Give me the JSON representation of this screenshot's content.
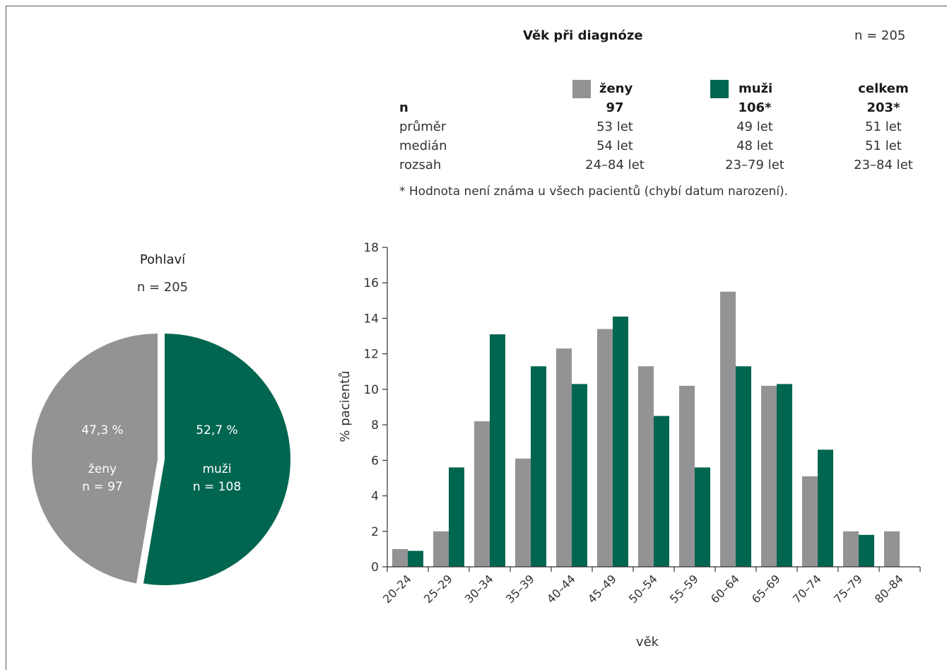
{
  "colors": {
    "zeny": "#939396",
    "muzi": "#006650",
    "axis": "#333333"
  },
  "age_table": {
    "title": "Věk při diagnóze",
    "n_total": "n = 205",
    "headers": [
      "ženy",
      "muži",
      "celkem"
    ],
    "rows": [
      {
        "label": "n",
        "values": [
          "97",
          "106*",
          "203*"
        ]
      },
      {
        "label": "průměr",
        "values": [
          "53 let",
          "49 let",
          "51 let"
        ]
      },
      {
        "label": "medián",
        "values": [
          "54 let",
          "48 let",
          "51 let"
        ]
      },
      {
        "label": "rozsah",
        "values": [
          "24–84 let",
          "23–79 let",
          "23–84 let"
        ]
      }
    ],
    "footnote": "* Hodnota není známa u všech pacientů (chybí datum narození)."
  },
  "pie": {
    "title": "Pohlaví",
    "n_total": "n = 205",
    "slices": [
      {
        "name": "ženy",
        "percent_label": "47,3 %",
        "n_label": "n = 97",
        "value": 47.3
      },
      {
        "name": "muži",
        "percent_label": "52,7 %",
        "n_label": "n = 108",
        "value": 52.7
      }
    ]
  },
  "chart_data": [
    {
      "type": "pie",
      "title": "Pohlaví",
      "categories": [
        "ženy",
        "muži"
      ],
      "values": [
        47.3,
        52.7
      ]
    },
    {
      "type": "bar",
      "xlabel": "věk",
      "ylabel": "% pacientů",
      "ylim": [
        0,
        18
      ],
      "yticks": [
        "0",
        "2",
        "4",
        "6",
        "8",
        "10",
        "12",
        "14",
        "16",
        "18"
      ],
      "categories": [
        "20–24",
        "25–29",
        "30–34",
        "35–39",
        "40–44",
        "45–49",
        "50–54",
        "55–59",
        "60–64",
        "65–69",
        "70–74",
        "75–79",
        "80–84"
      ],
      "series": [
        {
          "name": "ženy",
          "values": [
            1.0,
            2.0,
            8.2,
            6.1,
            12.3,
            13.4,
            11.3,
            10.2,
            15.5,
            10.2,
            5.1,
            2.0,
            2.0
          ]
        },
        {
          "name": "muži",
          "values": [
            0.9,
            5.6,
            13.1,
            11.3,
            10.3,
            14.1,
            8.5,
            5.6,
            11.3,
            10.3,
            6.6,
            1.8,
            null
          ]
        }
      ],
      "grid": false,
      "legend": "top"
    }
  ]
}
